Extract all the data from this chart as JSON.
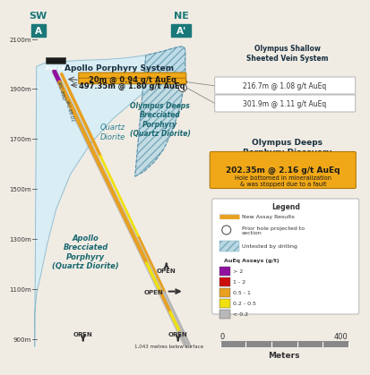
{
  "bg_color": "#f0ece4",
  "map_color": "#c8dfe8",
  "map_light": "#d8edf4",
  "olympus_hatch_color": "#9fbfcc",
  "teal_dark": "#1a6870",
  "teal_mid": "#2a8090",
  "drill_orange": "#e8a020",
  "drill_purple": "#9010a0",
  "drill_red": "#cc1010",
  "drill_yellow": "#f0e010",
  "drill_gray": "#b0b0b0",
  "orange_box": "#f0a818",
  "text_dark": "#1a3040",
  "text_mid": "#2a5060",
  "white": "#ffffff",
  "gray_line": "#808080",
  "sw_box_color": "#1a7878",
  "yticks": [
    900,
    1100,
    1300,
    1500,
    1700,
    1900,
    2100
  ],
  "assay1": "20m @ 0.94 g/t AuEq",
  "assay2": "497.35m @ 1.80 g/t AuEq",
  "assay3": "216.7m @ 1.08 g/t AuEq",
  "assay4": "301.9m @ 1.11 g/t AuEq",
  "assay5": "202.35m @ 2.16 g/t AuEq",
  "assay5_sub": "Hole bottomed in mineralization\n& was stopped due to a fault",
  "open_label": "OPEN",
  "depth_label": "1,043 metres below surface",
  "pad14": "Pad 14",
  "apollo_system": "Apollo Porphyry System",
  "olympus_shallow": "Olympus Shallow\nSheeted Vein System",
  "olympus_deeps_title": "Olympus Deeps\nPorphyry Discovery",
  "quartz_diorite": "Quartz\nDiorite",
  "olympus_body": "Olympus Deeps\nBrecciated\nPorphyry\n(Quartz Diorite)",
  "apollo_body": "Apollo\nBrecciated\nPorphyry\n(Quartz Diorite)",
  "legend_title": "Legend",
  "leg1": "New Assay Results",
  "leg2": "Prior hole projected to\nsection",
  "leg3": "Untested by drilling",
  "leg4_title": "AuEq Assays (g/t)",
  "leg4_items": [
    [
      "> 2",
      "#9010a0"
    ],
    [
      "1 - 2",
      "#cc1010"
    ],
    [
      "0.5 - 1",
      "#e8a020"
    ],
    [
      "0.2 - 0.5",
      "#f0e010"
    ],
    [
      "< 0.2",
      "#b8b8b8"
    ]
  ],
  "scale_0": "0",
  "scale_400": "400",
  "meters_label": "Meters"
}
